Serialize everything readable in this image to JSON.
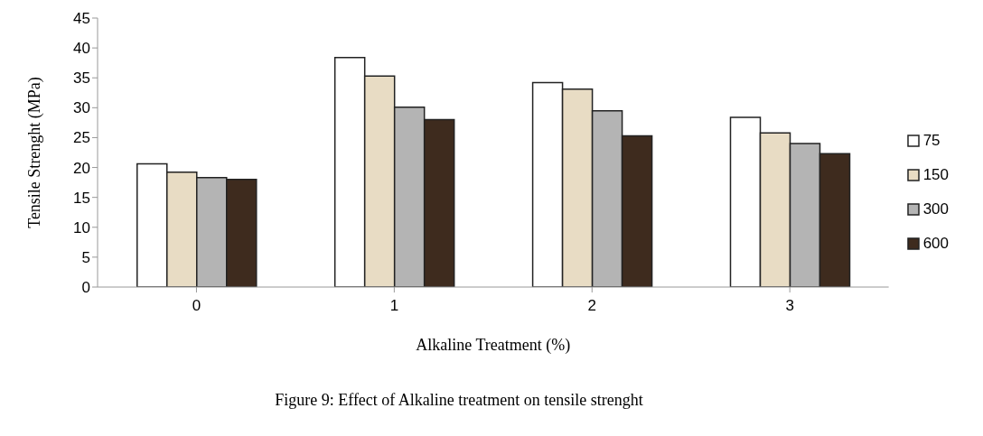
{
  "chart_data": {
    "type": "bar",
    "xlabel": "Alkaline Treatment (%)",
    "ylabel": "Tensile Strenght (MPa)",
    "categories": [
      "0",
      "1",
      "2",
      "3"
    ],
    "series": [
      {
        "name": "75",
        "color": "#ffffff",
        "values": [
          20.6,
          38.4,
          34.2,
          28.4
        ]
      },
      {
        "name": "150",
        "color": "#e8dcc4",
        "values": [
          19.2,
          35.3,
          33.1,
          25.8
        ]
      },
      {
        "name": "300",
        "color": "#b4b4b4",
        "values": [
          18.3,
          30.1,
          29.5,
          24.0
        ]
      },
      {
        "name": "600",
        "color": "#3e2b1e",
        "values": [
          18.0,
          28.0,
          25.3,
          22.3
        ]
      }
    ],
    "ylim": [
      0,
      45
    ],
    "yticks": [
      0,
      5,
      10,
      15,
      20,
      25,
      30,
      35,
      40,
      45
    ],
    "grid": false,
    "legend": "right",
    "annotations": [
      "Figure 9: Effect of Alkaline treatment on tensile strenght"
    ]
  }
}
